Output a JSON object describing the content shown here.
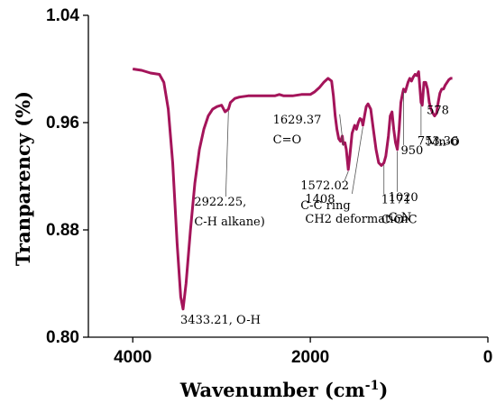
{
  "chart_data": {
    "type": "line",
    "title": "",
    "xlabel": "Wavenumber (cm",
    "xlabel_sup": "-1",
    "xlabel_tail": ")",
    "ylabel": "Tranparency (%)",
    "xlim": [
      4500,
      0
    ],
    "ylim": [
      0.8,
      1.04
    ],
    "x_ticks": [
      4000,
      2000,
      0
    ],
    "x_tick_labels": [
      "4000",
      "2000",
      "0"
    ],
    "y_ticks": [
      0.8,
      0.88,
      0.96,
      1.04
    ],
    "y_tick_labels": [
      "0.80",
      "0.88",
      "0.96",
      "1.04"
    ],
    "grid": false,
    "series": [
      {
        "color": "#a4145a",
        "x": [
          4000,
          3900,
          3800,
          3700,
          3650,
          3600,
          3550,
          3500,
          3460,
          3433,
          3400,
          3350,
          3300,
          3250,
          3200,
          3150,
          3100,
          3050,
          3000,
          2960,
          2922,
          2900,
          2850,
          2800,
          2700,
          2600,
          2500,
          2400,
          2350,
          2300,
          2200,
          2100,
          2000,
          1950,
          1900,
          1850,
          1800,
          1760,
          1740,
          1720,
          1700,
          1680,
          1660,
          1640,
          1629,
          1610,
          1595,
          1572,
          1555,
          1530,
          1500,
          1480,
          1460,
          1440,
          1420,
          1408,
          1390,
          1370,
          1350,
          1320,
          1290,
          1260,
          1230,
          1200,
          1171,
          1150,
          1120,
          1100,
          1080,
          1060,
          1040,
          1020,
          1000,
          980,
          960,
          950,
          930,
          900,
          880,
          860,
          840,
          820,
          800,
          780,
          753,
          740,
          720,
          700,
          680,
          660,
          640,
          620,
          600,
          578,
          560,
          540,
          520,
          500,
          480,
          460,
          440,
          420,
          400
        ],
        "y": [
          1.0,
          0.999,
          0.997,
          0.996,
          0.99,
          0.97,
          0.93,
          0.87,
          0.83,
          0.821,
          0.84,
          0.88,
          0.915,
          0.94,
          0.955,
          0.965,
          0.97,
          0.972,
          0.973,
          0.968,
          0.97,
          0.975,
          0.978,
          0.979,
          0.98,
          0.98,
          0.98,
          0.98,
          0.981,
          0.98,
          0.98,
          0.981,
          0.981,
          0.983,
          0.986,
          0.99,
          0.993,
          0.991,
          0.98,
          0.965,
          0.955,
          0.948,
          0.946,
          0.95,
          0.944,
          0.945,
          0.94,
          0.925,
          0.935,
          0.952,
          0.958,
          0.955,
          0.96,
          0.963,
          0.962,
          0.958,
          0.965,
          0.972,
          0.974,
          0.97,
          0.955,
          0.94,
          0.93,
          0.928,
          0.93,
          0.935,
          0.95,
          0.965,
          0.968,
          0.955,
          0.945,
          0.94,
          0.955,
          0.975,
          0.982,
          0.985,
          0.983,
          0.99,
          0.993,
          0.991,
          0.994,
          0.996,
          0.995,
          0.998,
          0.975,
          0.973,
          0.99,
          0.99,
          0.985,
          0.975,
          0.97,
          0.967,
          0.965,
          0.967,
          0.975,
          0.982,
          0.985,
          0.985,
          0.988,
          0.99,
          0.992,
          0.993,
          0.993
        ]
      }
    ],
    "annotations": [
      {
        "lines": [
          "3433.21, O-H"
        ],
        "x": 3433,
        "y": 0.821
      },
      {
        "lines": [
          "2922.25,",
          "C-H alkane)"
        ],
        "x": 2922,
        "y": 0.97
      },
      {
        "lines": [
          "1629.37",
          "C=O"
        ],
        "x": 1629,
        "y": 0.944
      },
      {
        "lines": [
          "1572.02",
          "C-C ring"
        ],
        "x": 1572,
        "y": 0.925
      },
      {
        "lines": [
          "1408",
          "CH2 deformation"
        ],
        "x": 1408,
        "y": 0.958
      },
      {
        "lines": [
          "1171",
          "C-O-C"
        ],
        "x": 1171,
        "y": 0.93
      },
      {
        "lines": [
          "1020",
          "C-N"
        ],
        "x": 1020,
        "y": 0.94
      },
      {
        "lines": [
          "950"
        ],
        "x": 950,
        "y": 0.985
      },
      {
        "lines": [
          "753.36"
        ],
        "x": 753,
        "y": 0.975
      },
      {
        "lines": [
          "Mn-O"
        ],
        "x": 600,
        "y": 0.965
      },
      {
        "lines": [
          "578"
        ],
        "x": 578,
        "y": 0.967
      }
    ]
  }
}
